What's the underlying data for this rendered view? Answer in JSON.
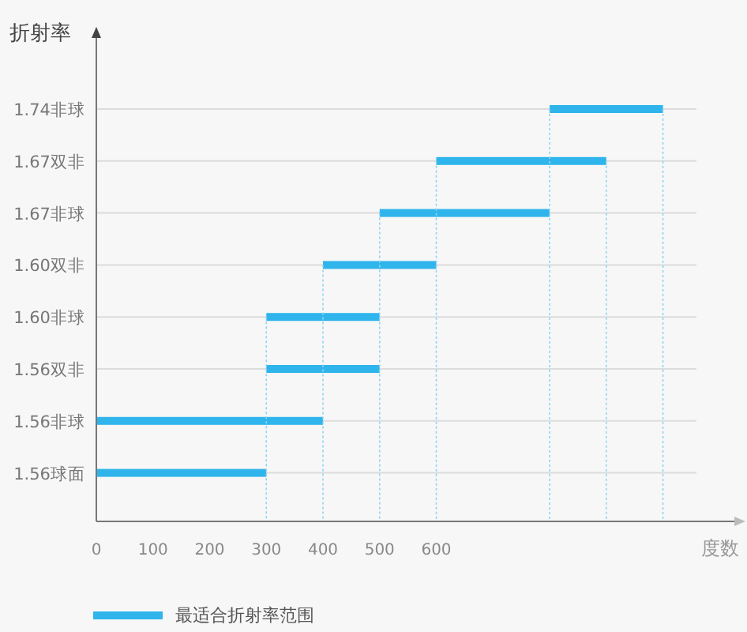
{
  "chart_data": {
    "type": "bar",
    "orientation": "horizontal",
    "ylabel": "折射率",
    "xlabel": "度数",
    "categories": [
      "1.74非球",
      "1.67双非",
      "1.67非球",
      "1.60双非",
      "1.60非球",
      "1.56双非",
      "1.56非球",
      "1.56球面"
    ],
    "series": [
      {
        "name": "最适合折射率范围",
        "color": "#2fb5ec",
        "base": [
          800,
          600,
          500,
          400,
          300,
          300,
          0,
          0
        ],
        "values": [
          200,
          300,
          300,
          200,
          200,
          200,
          400,
          300
        ]
      }
    ],
    "xlim": [
      0,
      1140
    ],
    "xticks": [
      0,
      100,
      200,
      300,
      400,
      500,
      600
    ],
    "ref_lines": [
      {
        "axis": "x",
        "value": 300,
        "color": "#8fd3f4",
        "line_style": "dotted"
      },
      {
        "axis": "x",
        "value": 400,
        "color": "#8fd3f4",
        "line_style": "dotted"
      },
      {
        "axis": "x",
        "value": 500,
        "color": "#8fd3f4",
        "line_style": "dotted"
      },
      {
        "axis": "x",
        "value": 600,
        "color": "#8fd3f4",
        "line_style": "dotted"
      },
      {
        "axis": "x",
        "value": 800,
        "color": "#8fd3f4",
        "line_style": "dotted"
      },
      {
        "axis": "x",
        "value": 900,
        "color": "#8fd3f4",
        "line_style": "dotted"
      },
      {
        "axis": "x",
        "value": 1000,
        "color": "#8fd3f4",
        "line_style": "dotted"
      }
    ],
    "grid": "y",
    "legend": "bottom left"
  }
}
